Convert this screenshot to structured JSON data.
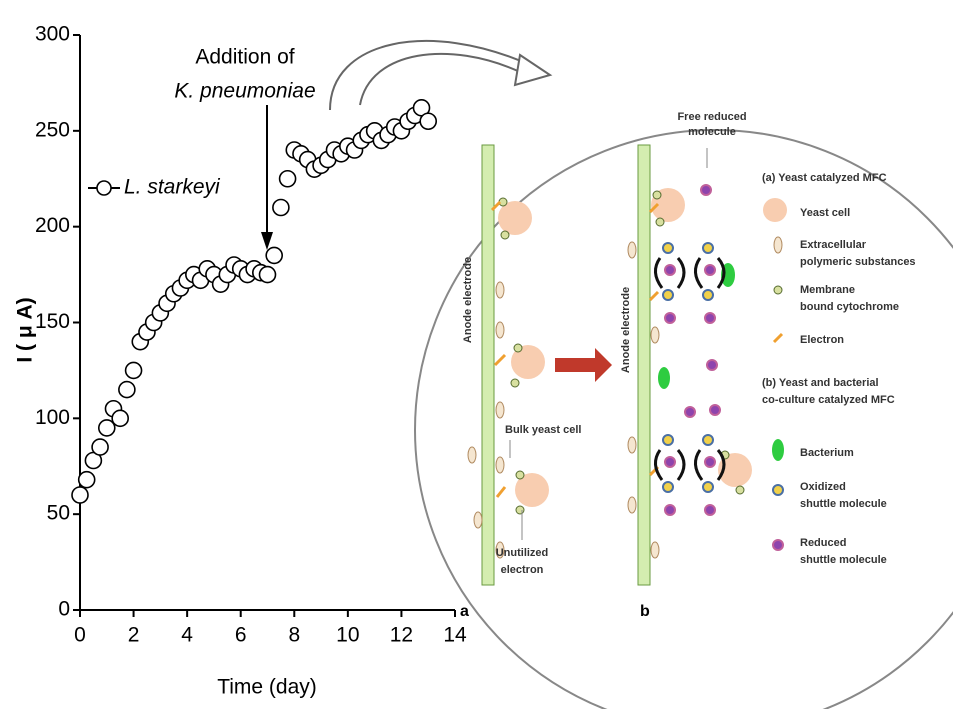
{
  "chart_data": {
    "type": "scatter",
    "x_label": "Time (day)",
    "y_label": "I ( μ A)",
    "annotation": [
      "Addition of",
      "K. pneumoniae"
    ],
    "x": [
      0,
      0.25,
      0.5,
      0.75,
      1,
      1.25,
      1.5,
      1.75,
      2,
      2.25,
      2.5,
      2.75,
      3,
      3.25,
      3.5,
      3.75,
      4,
      4.25,
      4.5,
      4.75,
      5,
      5.25,
      5.5,
      5.75,
      6,
      6.25,
      6.5,
      6.75,
      7,
      7.25,
      7.5,
      7.75,
      8,
      8.25,
      8.5,
      8.75,
      9,
      9.25,
      9.5,
      9.75,
      10,
      10.25,
      10.5,
      10.75,
      11,
      11.25,
      11.5,
      11.75,
      12,
      12.25,
      12.5,
      12.75,
      13
    ],
    "series": [
      {
        "name": "L. starkeyi",
        "color": "#000000",
        "values": [
          60,
          68,
          78,
          85,
          95,
          105,
          100,
          115,
          125,
          140,
          145,
          150,
          155,
          160,
          165,
          168,
          172,
          175,
          172,
          178,
          175,
          170,
          175,
          180,
          178,
          175,
          178,
          176,
          175,
          185,
          210,
          225,
          240,
          238,
          235,
          230,
          232,
          235,
          240,
          238,
          242,
          240,
          245,
          248,
          250,
          245,
          248,
          252,
          250,
          255,
          258,
          262,
          255
        ]
      }
    ],
    "xlim": [
      0,
      14
    ],
    "xticks": [
      0,
      2,
      4,
      6,
      8,
      10,
      12,
      14
    ],
    "ylim": [
      0,
      300
    ],
    "yticks": [
      0,
      50,
      100,
      150,
      200,
      250,
      300
    ]
  },
  "diagram": {
    "top_label": [
      "Free reduced",
      "molecule"
    ],
    "legend_a_title": "(a) Yeast catalyzed MFC",
    "legend_a": [
      [
        "Yeast cell"
      ],
      [
        "Extracellular",
        "polymeric substances"
      ],
      [
        "Membrane",
        "bound cytochrome"
      ],
      [
        "Electron"
      ]
    ],
    "legend_b_title": [
      "(b) Yeast and bacterial",
      "co-culture catalyzed MFC"
    ],
    "legend_b": [
      [
        "Bacterium"
      ],
      [
        "Oxidized",
        "shuttle molecule"
      ],
      [
        "Reduced",
        "shuttle molecule"
      ]
    ],
    "electrode_labels": [
      "Anode electrode",
      "Anode electrode"
    ],
    "bulk_label": "Bulk yeast cell",
    "unutilized_label": [
      "Unutilized",
      "electron"
    ],
    "panel_labels": [
      "a",
      "b"
    ]
  }
}
